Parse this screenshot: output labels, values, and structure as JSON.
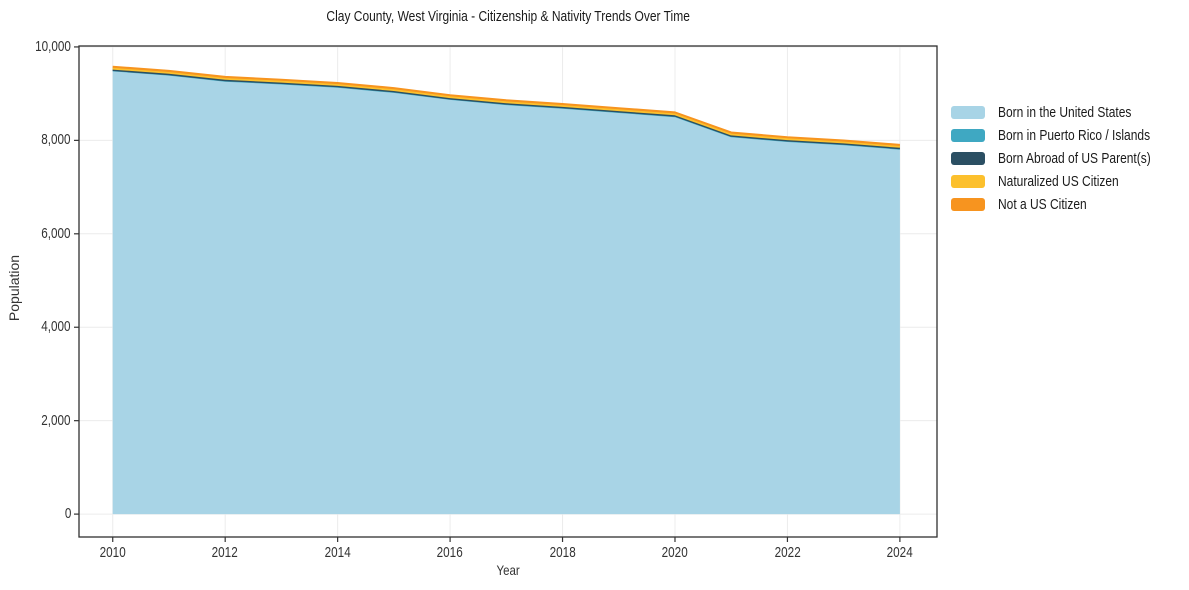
{
  "chart_data": {
    "type": "area",
    "stacked": true,
    "title": "Clay County, West Virginia - Citizenship & Nativity Trends Over Time",
    "xlabel": "Year",
    "ylabel": "Population",
    "x": [
      2010,
      2011,
      2012,
      2013,
      2014,
      2015,
      2016,
      2017,
      2018,
      2019,
      2020,
      2021,
      2022,
      2023,
      2024
    ],
    "series": [
      {
        "name": "Born in the United States",
        "color": "#a8d4e6",
        "values": [
          9495,
          9405,
          9275,
          9215,
          9145,
          9035,
          8885,
          8775,
          8695,
          8605,
          8515,
          8085,
          7985,
          7915,
          7820
        ]
      },
      {
        "name": "Born in Puerto Rico / Islands",
        "color": "#3fa8c2",
        "values": [
          0,
          0,
          0,
          0,
          0,
          0,
          0,
          0,
          0,
          0,
          0,
          0,
          0,
          0,
          0
        ]
      },
      {
        "name": "Born Abroad of US Parent(s)",
        "color": "#2b4f63",
        "values": [
          10,
          10,
          10,
          10,
          10,
          10,
          10,
          10,
          10,
          10,
          10,
          10,
          10,
          10,
          10
        ]
      },
      {
        "name": "Naturalized US Citizen",
        "color": "#fcc02d",
        "values": [
          30,
          30,
          30,
          30,
          30,
          30,
          30,
          30,
          30,
          30,
          30,
          30,
          30,
          30,
          30
        ]
      },
      {
        "name": "Not a US Citizen",
        "color": "#f7941f",
        "values": [
          45,
          45,
          45,
          45,
          45,
          45,
          45,
          45,
          45,
          45,
          45,
          45,
          45,
          45,
          45
        ]
      }
    ],
    "xticks": {
      "values": [
        2010,
        2012,
        2014,
        2016,
        2018,
        2020,
        2022,
        2024
      ],
      "labels": [
        "2010",
        "2012",
        "2014",
        "2016",
        "2018",
        "2020",
        "2022",
        "2024"
      ]
    },
    "yticks": {
      "values": [
        0,
        2000,
        4000,
        6000,
        8000,
        10000
      ],
      "labels": [
        "0",
        "2,000",
        "4,000",
        "6,000",
        "8,000",
        "10,000"
      ]
    },
    "xlim": [
      2009.4,
      2024.66
    ],
    "ylim": [
      -490,
      10020
    ],
    "grid": true,
    "legend_position": "right",
    "colors": {
      "background": "#ffffff",
      "grid": "#ececec",
      "axis_border": "#303030",
      "tick": "#333333",
      "title_text": "#1a1a1a",
      "label_text": "#333333"
    }
  }
}
